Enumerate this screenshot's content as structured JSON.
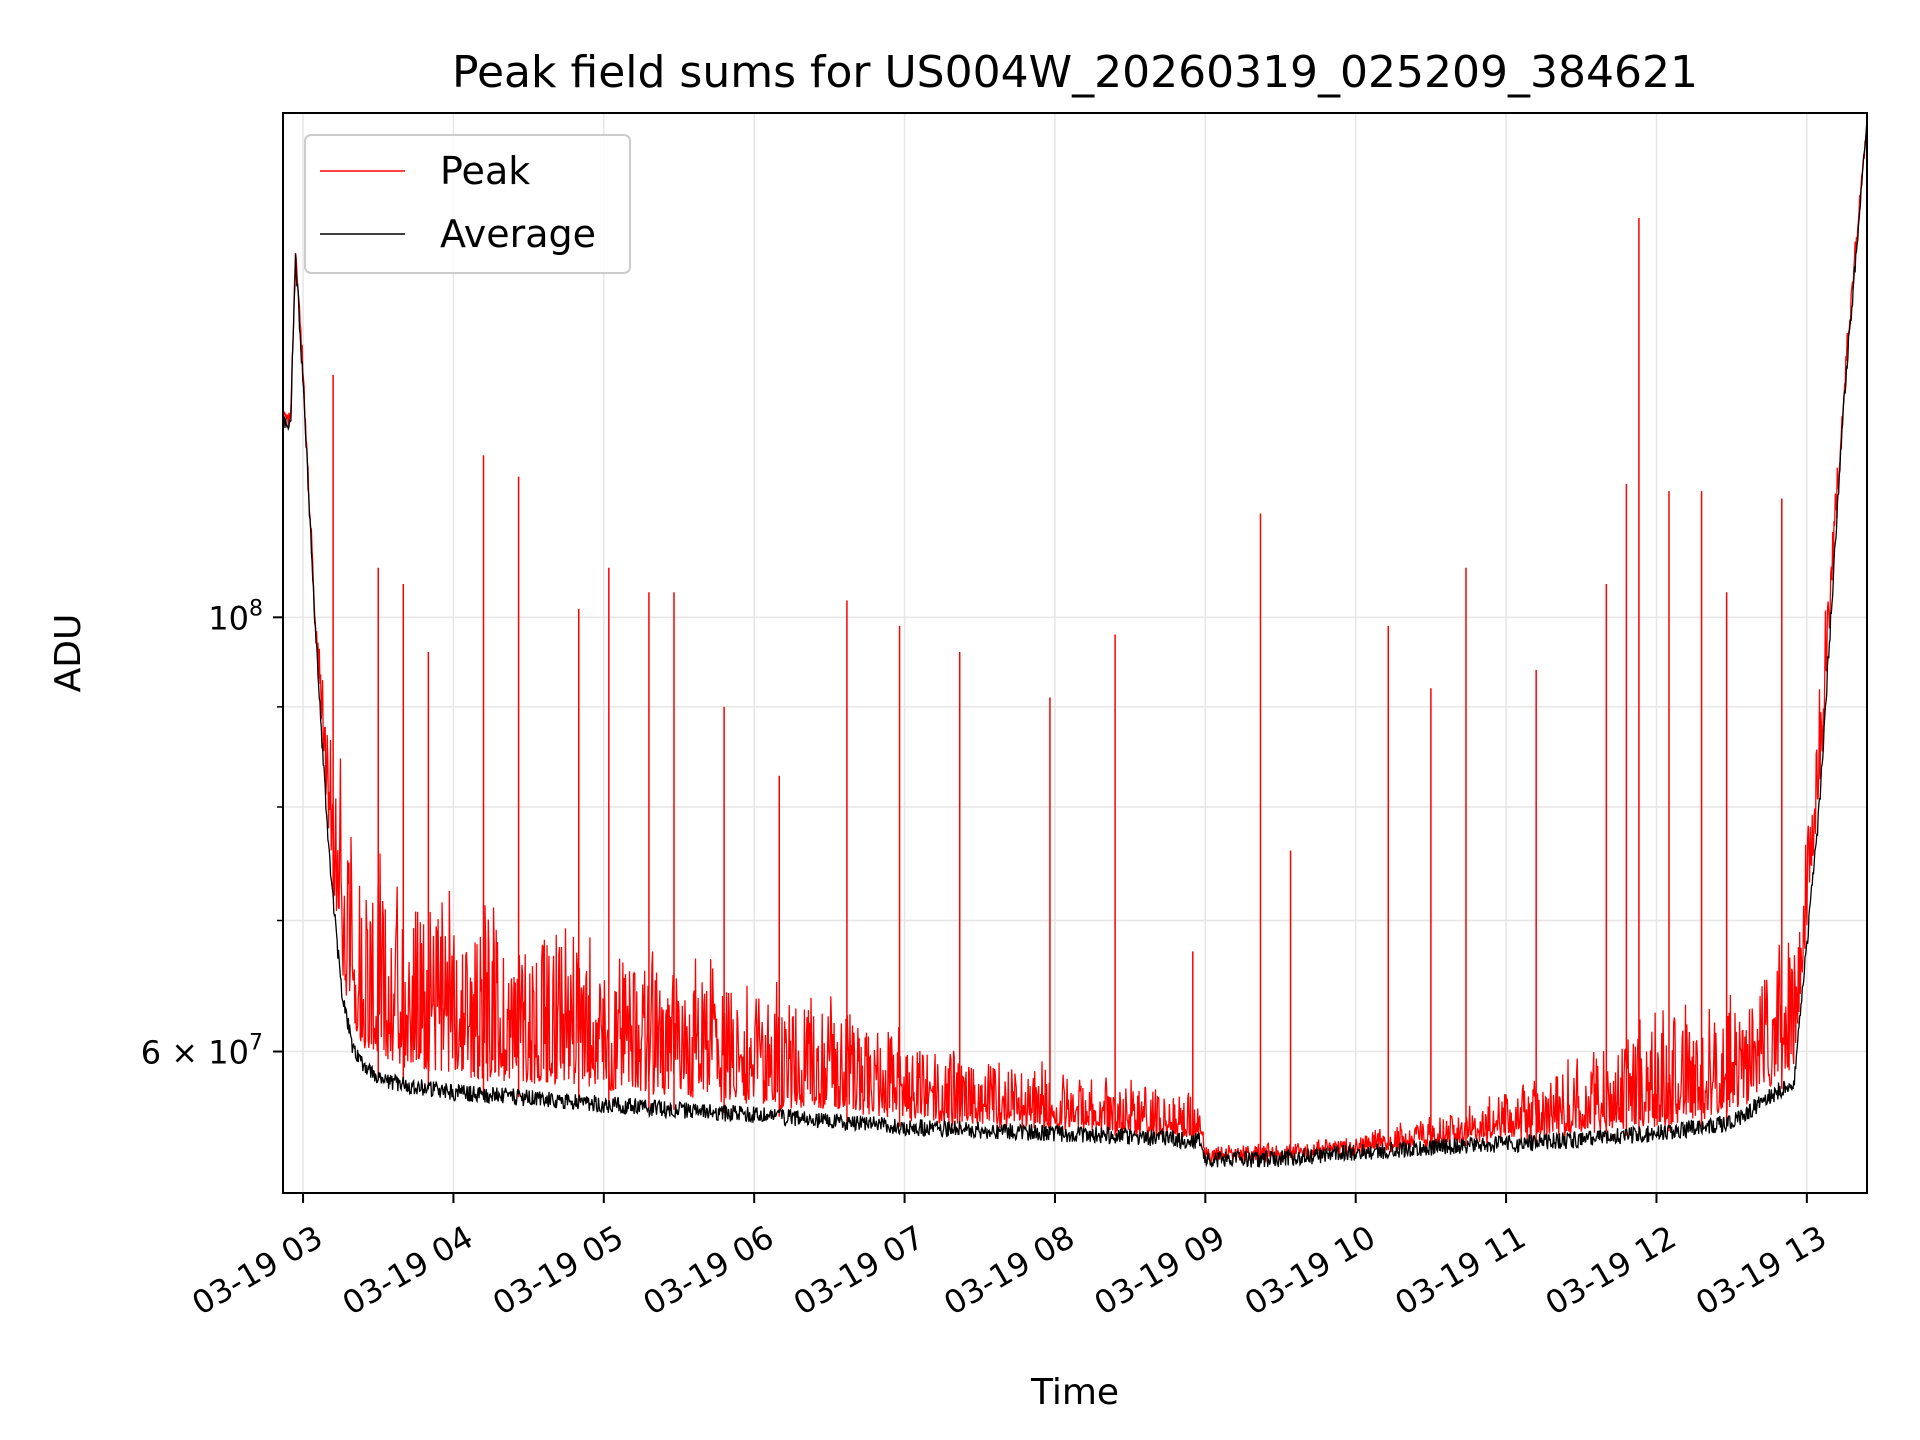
{
  "chart_data": {
    "type": "line",
    "title": "Peak field sums for US004W_20260319_025209_384621",
    "xlabel": "Time",
    "ylabel": "ADU",
    "yscale": "log",
    "xlim": [
      "2026-03-19 02:52",
      "2026-03-19 13:24"
    ],
    "ylim": [
      50800000,
      181000000
    ],
    "x_ticks": [
      "03-19 03",
      "03-19 04",
      "03-19 05",
      "03-19 06",
      "03-19 07",
      "03-19 08",
      "03-19 09",
      "03-19 10",
      "03-19 11",
      "03-19 12",
      "03-19 13"
    ],
    "y_ticks": [
      {
        "value": 100000000,
        "label": "10^8"
      },
      {
        "value": 60000000,
        "label": "6×10^7"
      }
    ],
    "y_minor_ticks": [
      70000000,
      80000000,
      90000000
    ],
    "grid": true,
    "legend_position": "upper-left",
    "series": [
      {
        "name": "Peak",
        "color": "#ff0000",
        "points": [
          [
            "03-19 02:52",
            128000000
          ],
          [
            "03-19 02:55",
            127000000
          ],
          [
            "03-19 02:57",
            155000000
          ],
          [
            "03-19 03:00",
            135000000
          ],
          [
            "03-19 03:05",
            100000000
          ],
          [
            "03-19 03:10",
            88000000
          ],
          [
            "03-19 03:15",
            82000000
          ],
          [
            "03-19 03:20",
            75000000
          ],
          [
            "03-19 03:30",
            73000000
          ],
          [
            "03-19 04:00",
            70000000
          ],
          [
            "03-19 04:30",
            69000000
          ],
          [
            "03-19 05:00",
            67000000
          ],
          [
            "03-19 05:30",
            66000000
          ],
          [
            "03-19 06:00",
            64000000
          ],
          [
            "03-19 06:30",
            63000000
          ],
          [
            "03-19 07:00",
            60500000
          ],
          [
            "03-19 07:30",
            59500000
          ],
          [
            "03-19 08:00",
            58500000
          ],
          [
            "03-19 08:30",
            57500000
          ],
          [
            "03-19 08:58",
            56500000
          ],
          [
            "03-19 09:00",
            53500000
          ],
          [
            "03-19 09:30",
            53600000
          ],
          [
            "03-19 10:00",
            54200000
          ],
          [
            "03-19 10:30",
            55500000
          ],
          [
            "03-19 11:00",
            57000000
          ],
          [
            "03-19 11:30",
            59500000
          ],
          [
            "03-19 12:00",
            61500000
          ],
          [
            "03-19 12:30",
            63000000
          ],
          [
            "03-19 12:55",
            68000000
          ],
          [
            "03-19 13:05",
            90000000
          ],
          [
            "03-19 13:15",
            135000000
          ],
          [
            "03-19 13:24",
            181000000
          ]
        ],
        "spikes": [
          [
            "03-19 03:12",
            133000000
          ],
          [
            "03-19 03:30",
            106000000
          ],
          [
            "03-19 03:40",
            104000000
          ],
          [
            "03-19 03:50",
            96000000
          ],
          [
            "03-19 04:12",
            121000000
          ],
          [
            "03-19 04:26",
            118000000
          ],
          [
            "03-19 04:50",
            101000000
          ],
          [
            "03-19 05:02",
            106000000
          ],
          [
            "03-19 05:18",
            103000000
          ],
          [
            "03-19 05:28",
            103000000
          ],
          [
            "03-19 05:48",
            90000000
          ],
          [
            "03-19 06:10",
            83000000
          ],
          [
            "03-19 06:37",
            102000000
          ],
          [
            "03-19 06:58",
            99000000
          ],
          [
            "03-19 07:22",
            96000000
          ],
          [
            "03-19 07:58",
            91000000
          ],
          [
            "03-19 08:24",
            98000000
          ],
          [
            "03-19 08:55",
            67500000
          ],
          [
            "03-19 09:22",
            113000000
          ],
          [
            "03-19 09:34",
            76000000
          ],
          [
            "03-19 10:13",
            99000000
          ],
          [
            "03-19 10:30",
            92000000
          ],
          [
            "03-19 10:44",
            106000000
          ],
          [
            "03-19 11:12",
            94000000
          ],
          [
            "03-19 11:40",
            104000000
          ],
          [
            "03-19 11:48",
            117000000
          ],
          [
            "03-19 11:53",
            160000000
          ],
          [
            "03-19 12:05",
            116000000
          ],
          [
            "03-19 12:18",
            116000000
          ],
          [
            "03-19 12:28",
            103000000
          ],
          [
            "03-19 12:50",
            115000000
          ],
          [
            "03-19 13:12",
            114000000
          ]
        ]
      },
      {
        "name": "Average",
        "color": "#000000",
        "points": [
          [
            "03-19 02:52",
            126000000
          ],
          [
            "03-19 02:55",
            125000000
          ],
          [
            "03-19 02:57",
            153000000
          ],
          [
            "03-19 03:00",
            132000000
          ],
          [
            "03-19 03:05",
            98000000
          ],
          [
            "03-19 03:10",
            77000000
          ],
          [
            "03-19 03:15",
            65000000
          ],
          [
            "03-19 03:20",
            60000000
          ],
          [
            "03-19 03:30",
            58000000
          ],
          [
            "03-19 04:00",
            57200000
          ],
          [
            "03-19 04:30",
            56800000
          ],
          [
            "03-19 05:00",
            56400000
          ],
          [
            "03-19 05:30",
            56000000
          ],
          [
            "03-19 06:00",
            55700000
          ],
          [
            "03-19 06:30",
            55300000
          ],
          [
            "03-19 07:00",
            54900000
          ],
          [
            "03-19 07:30",
            54700000
          ],
          [
            "03-19 08:00",
            54500000
          ],
          [
            "03-19 08:30",
            54300000
          ],
          [
            "03-19 08:58",
            54000000
          ],
          [
            "03-19 09:00",
            52800000
          ],
          [
            "03-19 09:30",
            52900000
          ],
          [
            "03-19 10:00",
            53300000
          ],
          [
            "03-19 10:30",
            53600000
          ],
          [
            "03-19 11:00",
            53800000
          ],
          [
            "03-19 11:30",
            54100000
          ],
          [
            "03-19 12:00",
            54500000
          ],
          [
            "03-19 12:30",
            55200000
          ],
          [
            "03-19 12:55",
            58000000
          ],
          [
            "03-19 13:05",
            80000000
          ],
          [
            "03-19 13:15",
            130000000
          ],
          [
            "03-19 13:24",
            179000000
          ]
        ]
      }
    ]
  }
}
